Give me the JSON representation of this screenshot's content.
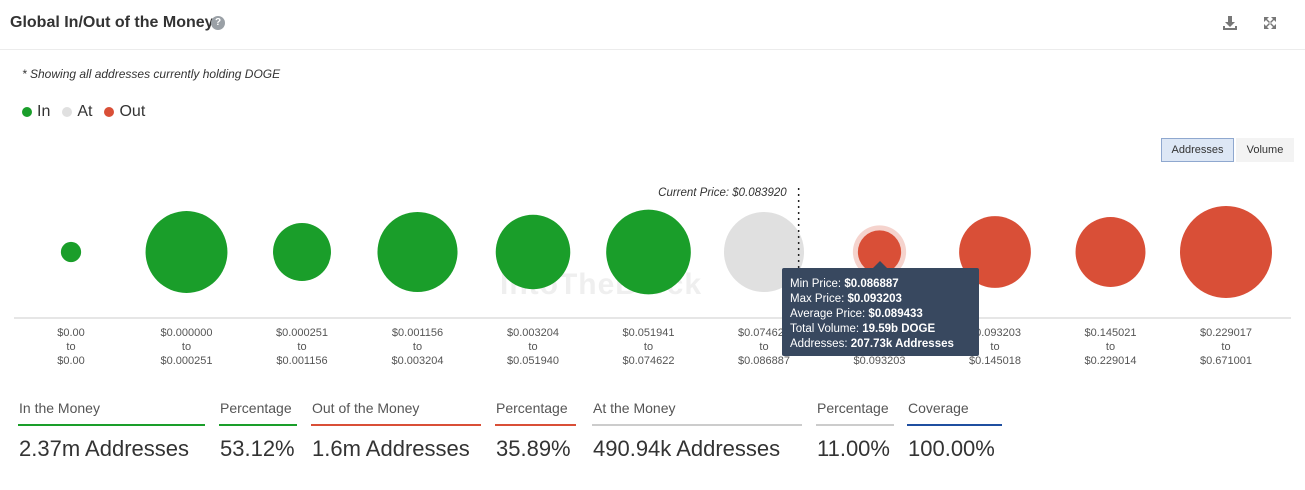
{
  "header": {
    "title": "Global In/Out of the Money",
    "help_glyph": "?"
  },
  "note": "* Showing all addresses currently holding DOGE",
  "legend": [
    {
      "label": "In",
      "color": "#1a9e2a"
    },
    {
      "label": "At",
      "color": "#e0e0e0"
    },
    {
      "label": "Out",
      "color": "#d94f37"
    }
  ],
  "toggles": {
    "addresses": "Addresses",
    "volume": "Volume",
    "active": "Addresses"
  },
  "watermark": "IntoTheBlock",
  "chart_data": {
    "type": "scatter",
    "current_price_label": "Current Price: $0.083920",
    "current_price_position_index": 6.3,
    "size_metric": "Addresses",
    "bins": [
      {
        "from": "$0.00",
        "to": "$0.00",
        "status": "in",
        "relative_size": 0.22
      },
      {
        "from": "$0.000000",
        "to": "$0.000251",
        "status": "in",
        "relative_size": 0.89
      },
      {
        "from": "$0.000251",
        "to": "$0.001156",
        "status": "in",
        "relative_size": 0.63
      },
      {
        "from": "$0.001156",
        "to": "$0.003204",
        "status": "in",
        "relative_size": 0.87
      },
      {
        "from": "$0.003204",
        "to": "$0.051940",
        "status": "in",
        "relative_size": 0.81
      },
      {
        "from": "$0.051941",
        "to": "$0.074622",
        "status": "in",
        "relative_size": 0.92
      },
      {
        "from": "$0.074622",
        "to": "$0.086887",
        "status": "at",
        "relative_size": 0.87
      },
      {
        "from": "$0.086887",
        "to": "$0.093203",
        "status": "out",
        "relative_size": 0.47
      },
      {
        "from": "$0.093203",
        "to": "$0.145018",
        "status": "out",
        "relative_size": 0.78
      },
      {
        "from": "$0.145021",
        "to": "$0.229014",
        "status": "out",
        "relative_size": 0.76
      },
      {
        "from": "$0.229017",
        "to": "$0.671001",
        "status": "out",
        "relative_size": 1.0
      }
    ],
    "to_word": "to",
    "highlighted_index": 7,
    "colors": {
      "in": "#1a9e2a",
      "at": "#e0e0e0",
      "out": "#d94f37"
    }
  },
  "tooltip": {
    "rows": [
      {
        "label": "Min Price:",
        "value": "$0.086887"
      },
      {
        "label": "Max Price:",
        "value": "$0.093203"
      },
      {
        "label": "Average Price:",
        "value": "$0.089433"
      },
      {
        "label": "Total Volume:",
        "value": "19.59b DOGE"
      },
      {
        "label": "Addresses:",
        "value": "207.73k Addresses"
      }
    ]
  },
  "stats": [
    {
      "label": "In the Money",
      "value": "2.37m Addresses",
      "color": "#1a9e2a"
    },
    {
      "label": "Percentage",
      "value": "53.12%",
      "color": "#1a9e2a"
    },
    {
      "label": "Out of the Money",
      "value": "1.6m Addresses",
      "color": "#d94f37"
    },
    {
      "label": "Percentage",
      "value": "35.89%",
      "color": "#d94f37"
    },
    {
      "label": "At the Money",
      "value": "490.94k Addresses",
      "color": "#cccccc"
    },
    {
      "label": "Percentage",
      "value": "11.00%",
      "color": "#cccccc"
    },
    {
      "label": "Coverage",
      "value": "100.00%",
      "color": "#1f4fa0"
    }
  ]
}
